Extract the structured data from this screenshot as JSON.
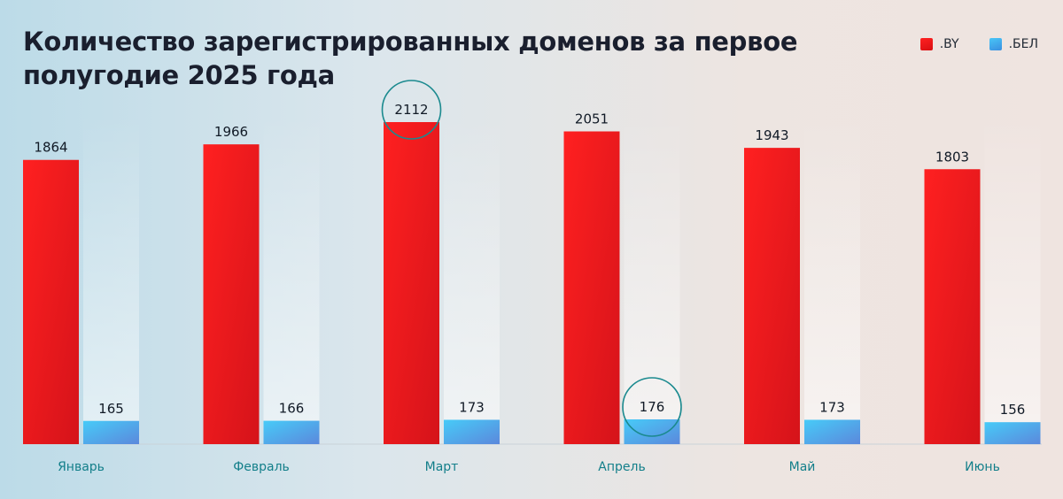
{
  "title": "Количество зарегистрированных доменов за первое полугодие 2025 года",
  "legend": {
    "by": ".BY",
    "bel": ".БЕЛ"
  },
  "colors": {
    "by": "#ff1f1f",
    "bel": "#4ab6f2",
    "category_label": "#137f8a",
    "highlight_ring": "#1b8a8f"
  },
  "chart_data": {
    "type": "bar",
    "categories": [
      "Январь",
      "Февраль",
      "Март",
      "Апрель",
      "Май",
      "Июнь"
    ],
    "series": [
      {
        "name": ".BY",
        "values": [
          1864,
          1966,
          2112,
          2051,
          1943,
          1803
        ]
      },
      {
        "name": ".БЕЛ",
        "values": [
          165,
          166,
          173,
          176,
          173,
          156
        ]
      }
    ],
    "highlighted": [
      {
        "series": ".BY",
        "category": "Март"
      },
      {
        "series": ".БЕЛ",
        "category": "Апрель"
      }
    ],
    "legend_position": "top-right",
    "grid": false
  }
}
